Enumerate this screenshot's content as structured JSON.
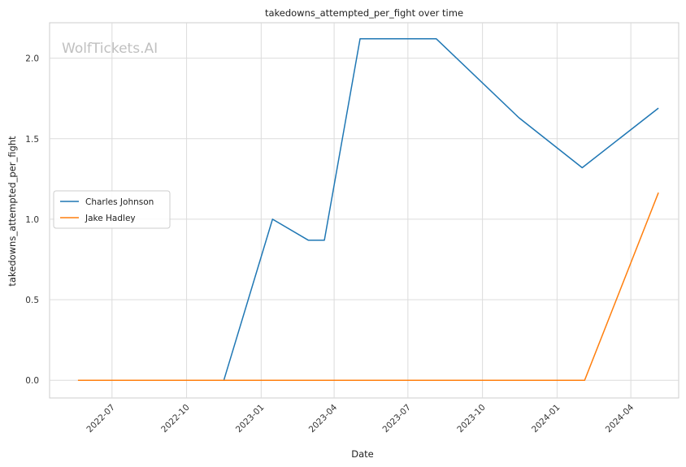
{
  "watermark": "WolfTickets.AI",
  "chart_data": {
    "type": "line",
    "title": "takedowns_attempted_per_fight over time",
    "xlabel": "Date",
    "ylabel": "takedowns_attempted_per_fight",
    "x_axis_type": "date",
    "xlim": [
      "2022-04-15",
      "2024-05-30"
    ],
    "ylim": [
      -0.11,
      2.22
    ],
    "x_ticks": [
      "2022-07-01",
      "2022-10-01",
      "2023-01-01",
      "2023-04-01",
      "2023-07-01",
      "2023-10-01",
      "2024-01-01",
      "2024-04-01"
    ],
    "x_tick_labels": [
      "2022-07",
      "2022-10",
      "2023-01",
      "2023-04",
      "2023-07",
      "2023-10",
      "2024-01",
      "2024-04"
    ],
    "y_ticks": [
      0.0,
      0.5,
      1.0,
      1.5,
      2.0
    ],
    "y_tick_labels": [
      "0.0",
      "0.5",
      "1.0",
      "1.5",
      "2.0"
    ],
    "grid": true,
    "legend_position": "center-left",
    "series": [
      {
        "name": "Charles Johnson",
        "color": "#1f77b4",
        "points": [
          {
            "x": "2022-07-31",
            "y": 0.0
          },
          {
            "x": "2022-11-16",
            "y": 0.0
          },
          {
            "x": "2023-01-15",
            "y": 1.0
          },
          {
            "x": "2023-02-28",
            "y": 0.87
          },
          {
            "x": "2023-03-20",
            "y": 0.87
          },
          {
            "x": "2023-05-03",
            "y": 2.12
          },
          {
            "x": "2023-08-05",
            "y": 2.12
          },
          {
            "x": "2023-11-15",
            "y": 1.63
          },
          {
            "x": "2024-02-01",
            "y": 1.32
          },
          {
            "x": "2024-05-05",
            "y": 1.69
          }
        ]
      },
      {
        "name": "Jake Hadley",
        "color": "#ff7f0e",
        "points": [
          {
            "x": "2022-05-20",
            "y": 0.0
          },
          {
            "x": "2024-02-04",
            "y": 0.0
          },
          {
            "x": "2024-05-05",
            "y": 1.165
          }
        ]
      }
    ]
  }
}
